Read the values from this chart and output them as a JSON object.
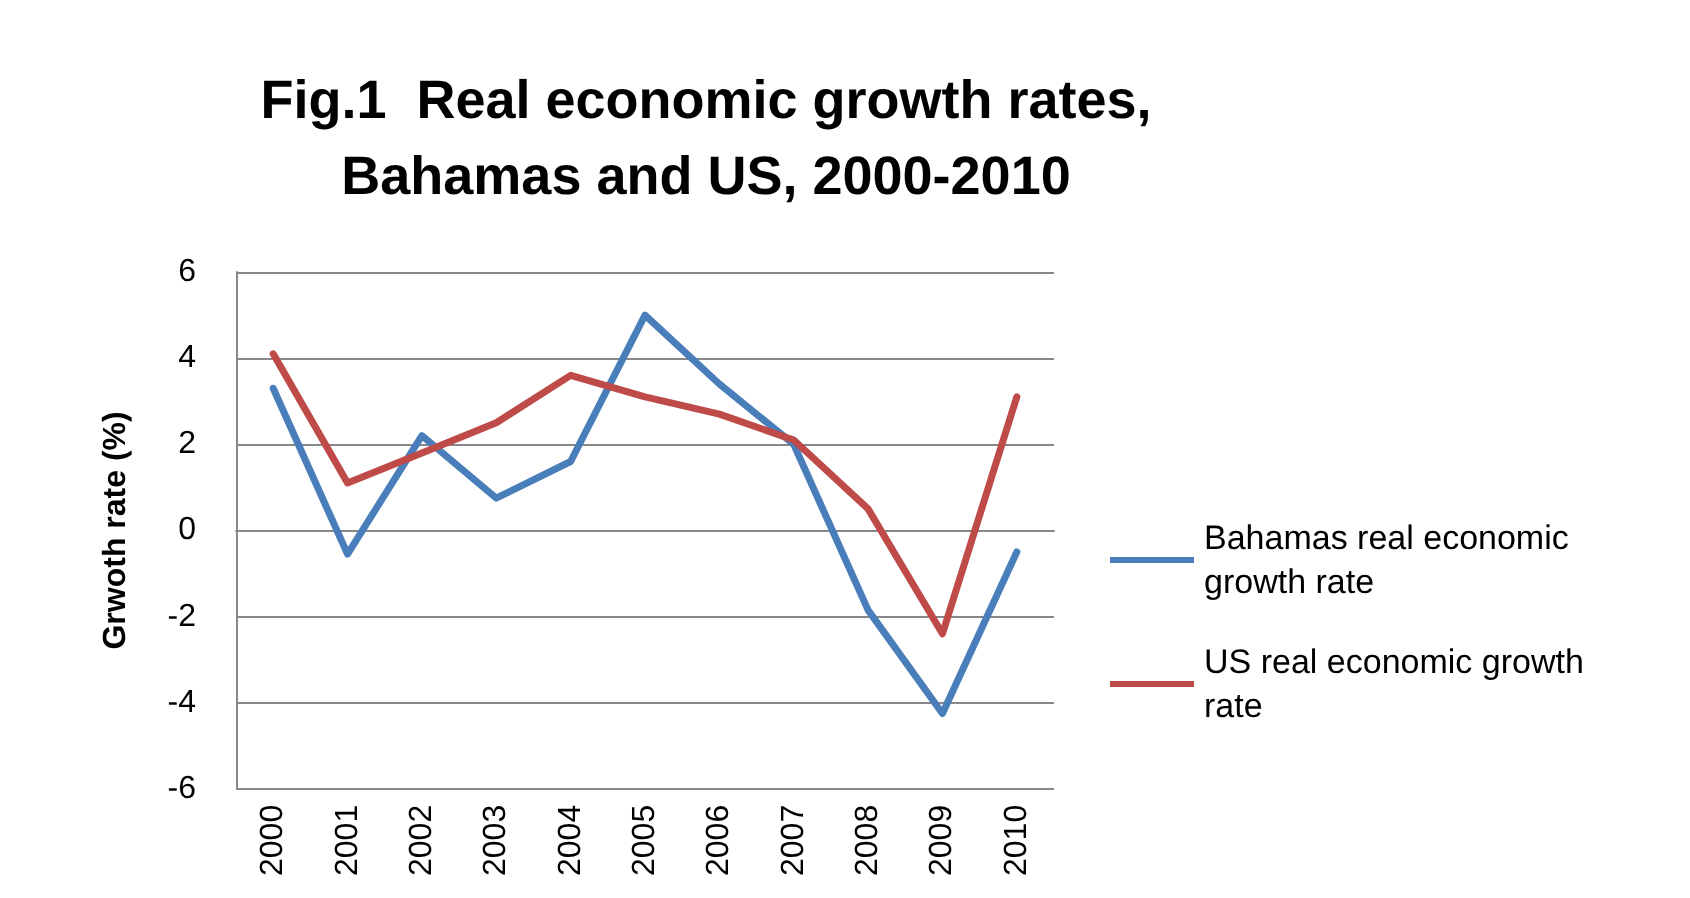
{
  "chart_data": {
    "type": "line",
    "title": "Fig.1  Real economic growth rates,\nBahamas and US, 2000-2010",
    "ylabel": "Grwoth rate (%)",
    "categories": [
      "2000",
      "2001",
      "2002",
      "2003",
      "2004",
      "2005",
      "2006",
      "2007",
      "2008",
      "2009",
      "2010"
    ],
    "series": [
      {
        "name": "Bahamas real economic growth rate",
        "color": "#4a7ebb",
        "values": [
          3.3,
          -0.55,
          2.2,
          0.75,
          1.6,
          5.0,
          3.4,
          2.0,
          -1.85,
          -4.25,
          -0.5
        ]
      },
      {
        "name": "US real economic growth rate",
        "color": "#be4b48",
        "values": [
          4.1,
          1.1,
          1.8,
          2.5,
          3.6,
          3.1,
          2.7,
          2.1,
          0.5,
          -2.4,
          3.1
        ]
      }
    ],
    "ylim": [
      -6,
      6
    ],
    "yticks": [
      -6,
      -4,
      -2,
      0,
      2,
      4,
      6
    ],
    "grid": "y",
    "legend": "right",
    "marker": "none",
    "line_style": "solid"
  }
}
